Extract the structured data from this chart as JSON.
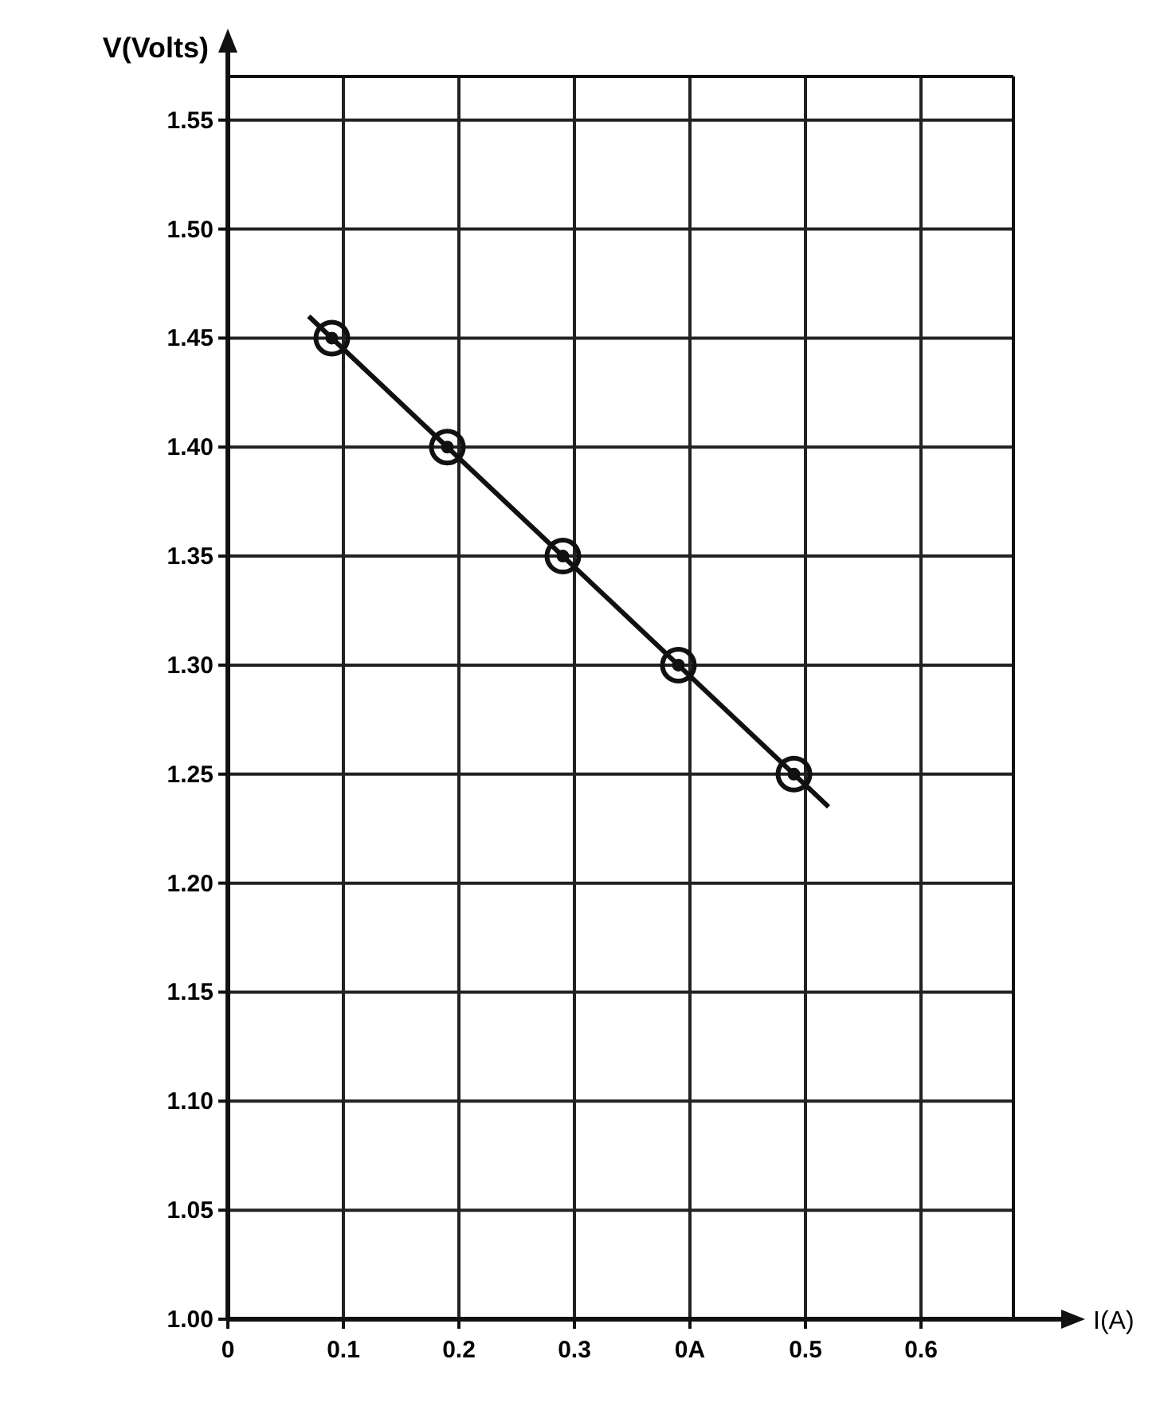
{
  "chart_data": {
    "type": "scatter",
    "xlabel": "I(A)",
    "ylabel": "V(Volts)",
    "xlim": [
      0,
      0.68
    ],
    "ylim": [
      1.0,
      1.57
    ],
    "xticks": [
      {
        "value": 0,
        "label": "0"
      },
      0.1,
      0.2,
      0.3,
      {
        "value": 0.4,
        "label": "0A"
      },
      0.5,
      0.6
    ],
    "yticks": [
      {
        "value": 1.0,
        "label": "1.00"
      },
      1.05,
      {
        "value": 1.1,
        "label": "1.10"
      },
      1.15,
      {
        "value": 1.2,
        "label": "1.20"
      },
      1.25,
      {
        "value": 1.3,
        "label": "1.30"
      },
      1.35,
      {
        "value": 1.4,
        "label": "1.40"
      },
      1.45,
      {
        "value": 1.5,
        "label": "1.50"
      },
      1.55
    ],
    "grid": true,
    "marker": "circle",
    "series": [
      {
        "color": "#111111",
        "x": [
          0.09,
          0.19,
          0.29,
          0.39,
          0.49
        ],
        "values": [
          1.45,
          1.4,
          1.35,
          1.3,
          1.25
        ]
      },
      {
        "type": "line",
        "color": "#111111",
        "x": [
          0.07,
          0.52
        ],
        "values": [
          1.46,
          1.235
        ],
        "marker": "none"
      }
    ]
  }
}
